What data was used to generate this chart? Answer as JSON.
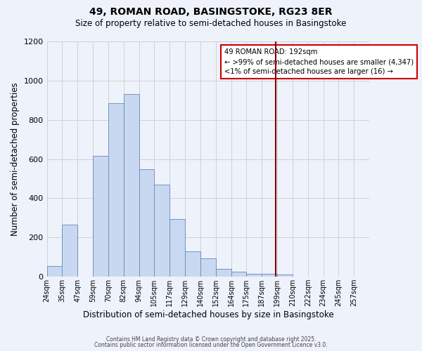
{
  "title": "49, ROMAN ROAD, BASINGSTOKE, RG23 8ER",
  "subtitle": "Size of property relative to semi-detached houses in Basingstoke",
  "xlabel": "Distribution of semi-detached houses by size in Basingstoke",
  "ylabel": "Number of semi-detached properties",
  "bar_labels": [
    "24sqm",
    "35sqm",
    "47sqm",
    "59sqm",
    "70sqm",
    "82sqm",
    "94sqm",
    "105sqm",
    "117sqm",
    "129sqm",
    "140sqm",
    "152sqm",
    "164sqm",
    "175sqm",
    "187sqm",
    "199sqm",
    "210sqm",
    "222sqm",
    "234sqm",
    "245sqm",
    "257sqm"
  ],
  "bar_values": [
    55,
    265,
    0,
    615,
    885,
    930,
    550,
    470,
    295,
    130,
    95,
    40,
    25,
    15,
    15,
    10,
    0,
    0,
    0,
    0,
    0
  ],
  "bar_color": "#c8d8f0",
  "bar_edge_color": "#6888bb",
  "background_color": "#eef2fb",
  "grid_color": "#cccccc",
  "property_line_color": "#8b0000",
  "ylim_max": 1200,
  "yticks": [
    0,
    200,
    400,
    600,
    800,
    1000,
    1200
  ],
  "annotation_title": "49 ROMAN ROAD: 192sqm",
  "annotation_line1": "← >99% of semi-detached houses are smaller (4,347)",
  "annotation_line2": "<1% of semi-detached houses are larger (16) →",
  "annotation_box_color": "#ffffff",
  "annotation_box_edge": "#cc0000",
  "footer_line1": "Contains HM Land Registry data © Crown copyright and database right 2025.",
  "footer_line2": "Contains public sector information licensed under the Open Government Licence v3.0.",
  "n_bins": 21,
  "property_bin_index": 15
}
